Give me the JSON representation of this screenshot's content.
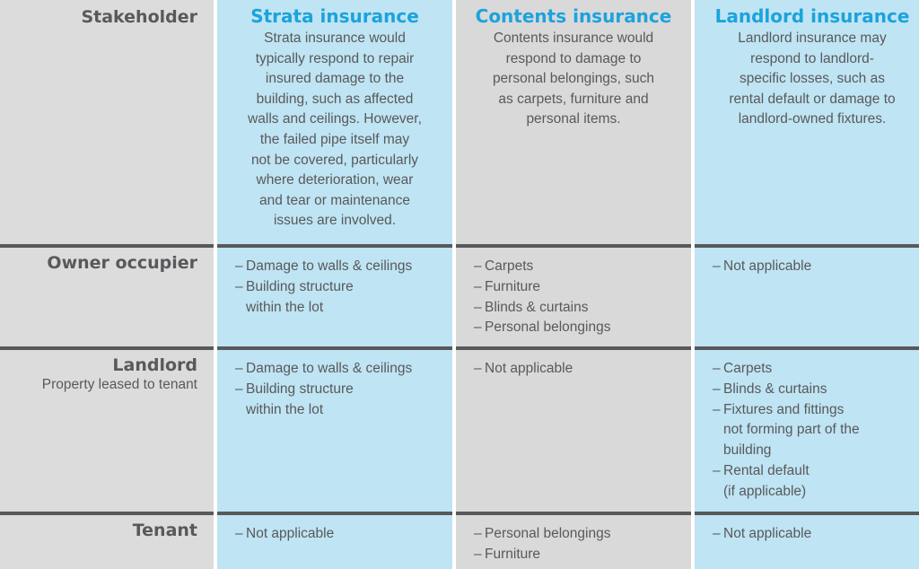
{
  "header": {
    "stakeholder_label": "Stakeholder",
    "columns": [
      {
        "title": "Strata insurance",
        "lines": [
          "Strata insurance would",
          "typically respond to repair",
          "insured damage to the",
          "building, such as affected",
          "walls and ceilings. However,",
          "the failed pipe itself may",
          "not be covered, particularly",
          "where deterioration, wear",
          "and tear or maintenance",
          "issues are involved."
        ]
      },
      {
        "title": "Contents insurance",
        "lines": [
          "Contents insurance would",
          "respond to damage to",
          "personal belongings, such",
          "as carpets, furniture and",
          "personal items."
        ]
      },
      {
        "title": "Landlord insurance",
        "lines": [
          "Landlord insurance may",
          "respond to landlord-",
          "specific losses, such as",
          "rental default or damage to",
          "landlord-owned fixtures."
        ]
      }
    ]
  },
  "rows": [
    {
      "stakeholder": "Owner occupier",
      "subtitle": "",
      "strata": [
        "Damage to walls & ceilings",
        "Building structure",
        "within the lot"
      ],
      "contents": [
        "Carpets",
        "Furniture",
        "Blinds & curtains",
        "Personal belongings"
      ],
      "landlord": [
        "Not applicable"
      ]
    },
    {
      "stakeholder": "Landlord",
      "subtitle": "Property leased to tenant",
      "strata": [
        "Damage to walls & ceilings",
        "Building structure",
        "within the lot"
      ],
      "contents": [
        "Not applicable"
      ],
      "landlord": [
        "Carpets",
        "Blinds & curtains",
        "Fixtures and fittings",
        "not forming part of the",
        "building",
        "Rental default",
        "(if applicable)"
      ]
    },
    {
      "stakeholder": "Tenant",
      "subtitle": "",
      "strata": [
        "Not applicable"
      ],
      "contents": [
        "Personal belongings",
        "Furniture"
      ],
      "landlord": [
        "Not applicable"
      ]
    }
  ],
  "colors": {
    "heading_blue": "#1ba3dc",
    "cell_blue": "#bfe4f3",
    "cell_grey": "#dcdcdd",
    "rule_grey": "#58595b",
    "text_grey": "#58595b"
  }
}
